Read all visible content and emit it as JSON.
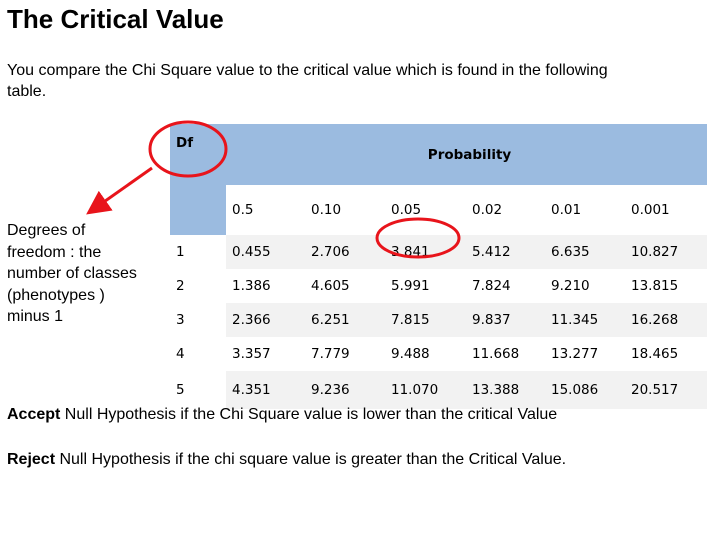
{
  "slide": {
    "title": "The Critical Value",
    "intro": "You compare the Chi Square value to the critical value which is found in the following table.",
    "side_note": "Degrees of freedom : the number of classes (phenotypes ) minus 1"
  },
  "table": {
    "df_header": "Df",
    "prob_header": "Probability",
    "probabilities": [
      "0.5",
      "0.10",
      "0.05",
      "0.02",
      "0.01",
      "0.001"
    ],
    "rows": [
      {
        "df": "1",
        "values": [
          "0.455",
          "2.706",
          "3.841",
          "5.412",
          "6.635",
          "10.827"
        ]
      },
      {
        "df": "2",
        "values": [
          "1.386",
          "4.605",
          "5.991",
          "7.824",
          "9.210",
          "13.815"
        ]
      },
      {
        "df": "3",
        "values": [
          "2.366",
          "6.251",
          "7.815",
          "9.837",
          "11.345",
          "16.268"
        ]
      },
      {
        "df": "4",
        "values": [
          "3.357",
          "7.779",
          "9.488",
          "11.668",
          "13.277",
          "18.465"
        ]
      },
      {
        "df": "5",
        "values": [
          "4.351",
          "9.236",
          "11.070",
          "13.388",
          "15.086",
          "20.517"
        ]
      }
    ]
  },
  "footer": {
    "accept_bold": "Accept",
    "accept_rest": " Null Hypothesis if the Chi Square value is lower than the critical Value",
    "reject_bold": "Reject",
    "reject_rest": " Null Hypothesis if the chi square value is greater than the Critical Value."
  },
  "colors": {
    "header_fill": "#9bbbe0",
    "stripe_fill": "#f2f2f2",
    "annotation_red": "#e8141b"
  }
}
